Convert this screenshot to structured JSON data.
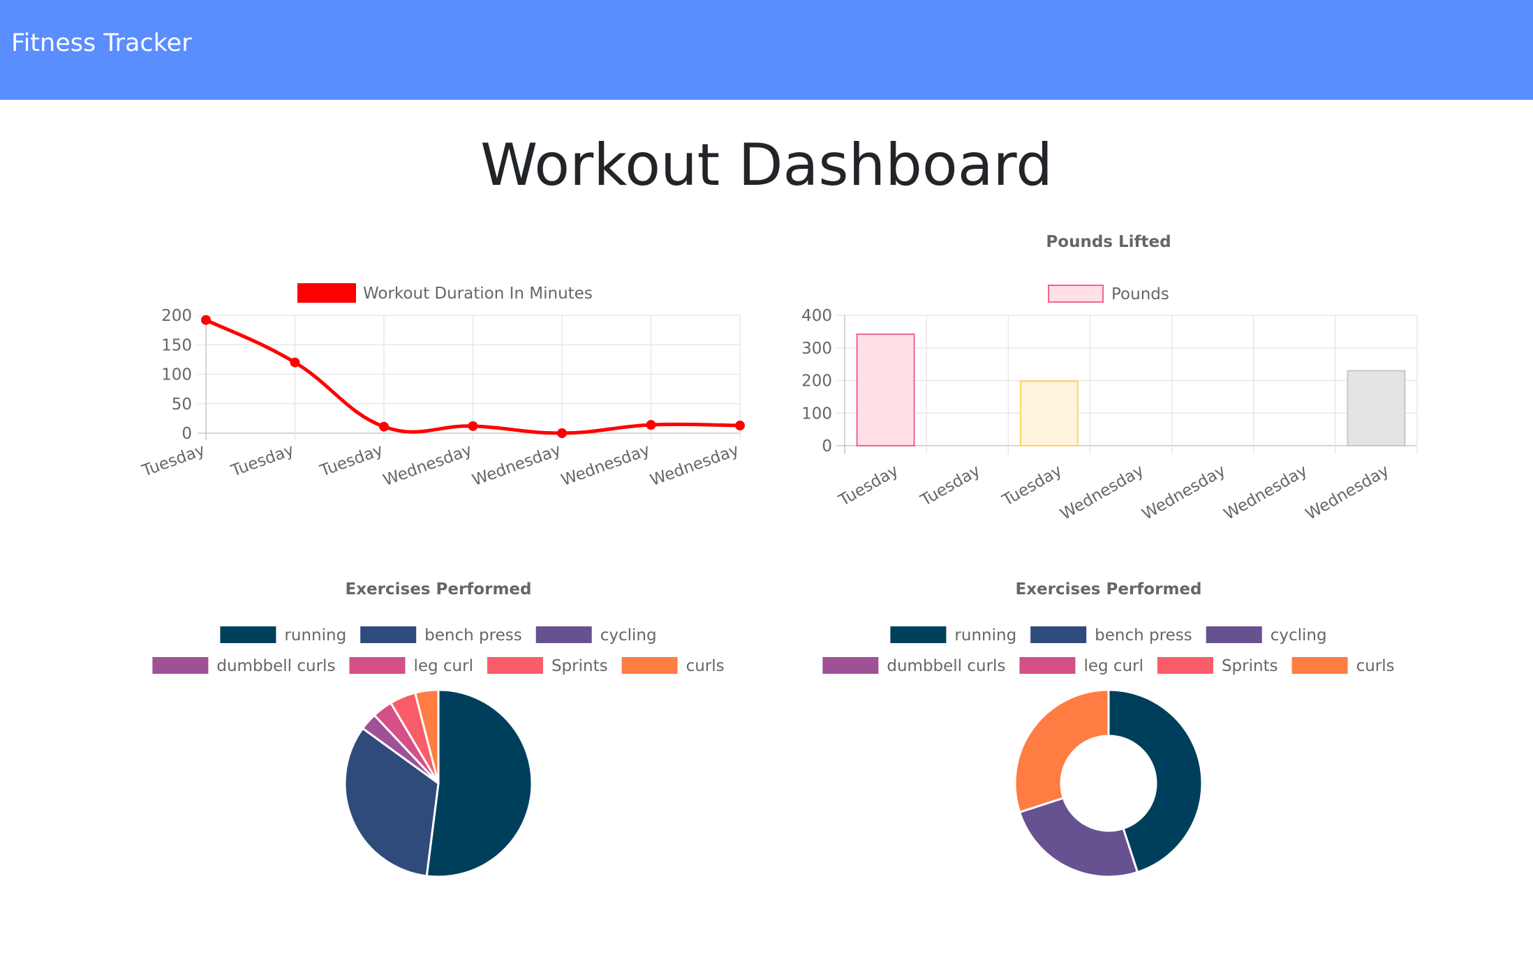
{
  "navbar": {
    "brand": "Fitness Tracker"
  },
  "page": {
    "title": "Workout Dashboard"
  },
  "chart_data": [
    {
      "type": "line",
      "title": "",
      "legend": [
        "Workout Duration In Minutes"
      ],
      "legend_position": "top",
      "x": [
        "Tuesday",
        "Tuesday",
        "Tuesday",
        "Wednesday",
        "Wednesday",
        "Wednesday",
        "Wednesday"
      ],
      "series": [
        {
          "name": "Workout Duration In Minutes",
          "values": [
            192,
            120,
            11,
            12,
            0,
            14,
            13
          ],
          "color": "#ff0000"
        }
      ],
      "y_ticks": [
        0,
        50,
        100,
        150,
        200
      ],
      "ylim": [
        0,
        200
      ],
      "grid": true
    },
    {
      "type": "bar",
      "title": "Pounds Lifted",
      "legend": [
        "Pounds"
      ],
      "legend_position": "top",
      "categories": [
        "Tuesday",
        "Tuesday",
        "Tuesday",
        "Wednesday",
        "Wednesday",
        "Wednesday",
        "Wednesday"
      ],
      "series": [
        {
          "name": "Pounds",
          "values": [
            342,
            0,
            198,
            0,
            0,
            0,
            230
          ]
        }
      ],
      "bar_fills": [
        "#ffe0e6",
        "#ffffff",
        "#fff5dd",
        "#ffffff",
        "#ffffff",
        "#ffffff",
        "#e4e4e4"
      ],
      "bar_borders": [
        "#f0648c",
        "#ffffff",
        "#ffd35c",
        "#ffffff",
        "#ffffff",
        "#ffffff",
        "#c7c7c7"
      ],
      "y_ticks": [
        0,
        100,
        200,
        300,
        400
      ],
      "ylim": [
        0,
        400
      ],
      "grid": true
    },
    {
      "type": "pie",
      "title": "Exercises Performed",
      "legend_position": "top",
      "categories": [
        "running",
        "bench press",
        "cycling",
        "dumbbell curls",
        "leg curl",
        "Sprints",
        "curls"
      ],
      "values": [
        52,
        33,
        0,
        3,
        3.5,
        4.5,
        4
      ],
      "colors": [
        "#003f5c",
        "#2f4b7c",
        "#665191",
        "#a05195",
        "#d45087",
        "#f95d6a",
        "#ff7c43"
      ]
    },
    {
      "type": "pie",
      "variant": "doughnut",
      "title": "Exercises Performed",
      "legend_position": "top",
      "categories": [
        "running",
        "bench press",
        "cycling",
        "dumbbell curls",
        "leg curl",
        "Sprints",
        "curls"
      ],
      "values": [
        45,
        0,
        25,
        0,
        0,
        0,
        30
      ],
      "colors": [
        "#003f5c",
        "#2f4b7c",
        "#665191",
        "#a05195",
        "#d45087",
        "#f95d6a",
        "#ff7c43"
      ]
    }
  ]
}
